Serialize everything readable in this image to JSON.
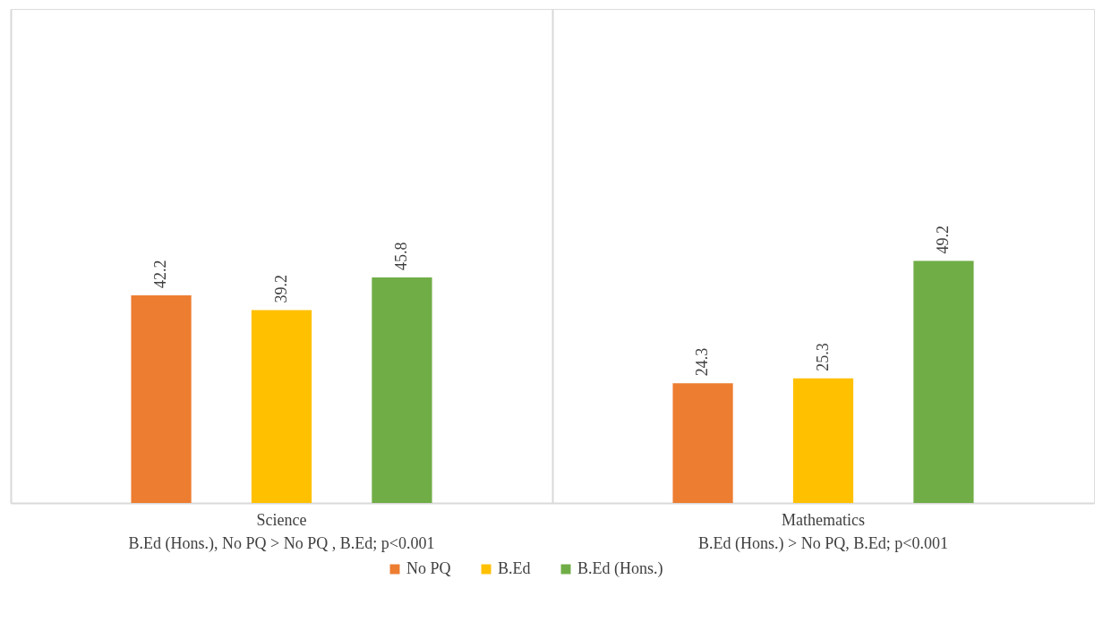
{
  "chart_data": {
    "type": "bar",
    "categories": [
      "Science\nB.Ed (Hons.), No PQ > No PQ , B.Ed; p<0.001",
      "Mathematics\nB.Ed (Hons.) >   No PQ, B.Ed; p<0.001"
    ],
    "series": [
      {
        "name": "No PQ",
        "color": "#ed7d31",
        "values": [
          42.2,
          24.3
        ]
      },
      {
        "name": "B.Ed",
        "color": "#ffc000",
        "values": [
          39.2,
          25.3
        ]
      },
      {
        "name": "B.Ed (Hons.)",
        "color": "#70ad47",
        "values": [
          45.8,
          49.2
        ]
      }
    ],
    "data_labels": true,
    "grid": "x",
    "legend": "bottom"
  }
}
